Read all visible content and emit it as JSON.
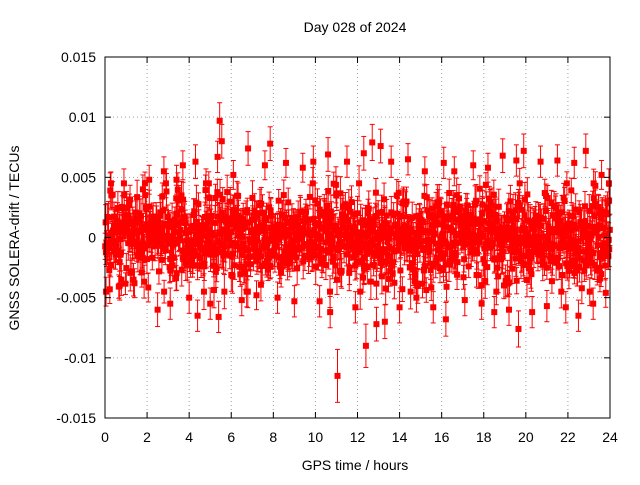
{
  "chart_data": {
    "type": "scatter",
    "title": "Day 028 of 2024",
    "xlabel": "GPS time / hours",
    "ylabel": "GNSS SOLERA-drift / TECUs",
    "xlim": [
      0,
      24
    ],
    "ylim": [
      -0.015,
      0.015
    ],
    "x_ticks": [
      0,
      2,
      4,
      6,
      8,
      10,
      12,
      14,
      16,
      18,
      20,
      22,
      24
    ],
    "y_ticks": [
      -0.015,
      -0.01,
      -0.005,
      0,
      0.005,
      0.01,
      0.015
    ],
    "x_tick_labels": [
      "0",
      "2",
      "4",
      "6",
      "8",
      "10",
      "12",
      "14",
      "16",
      "18",
      "20",
      "22",
      "24"
    ],
    "y_tick_labels": [
      "-0.015",
      "-0.01",
      "-0.005",
      "0",
      "0.005",
      "0.01",
      "0.015"
    ],
    "grid": true,
    "series": [
      {
        "color": "#ff0000",
        "marker": "square",
        "error_bars": true,
        "points": [
          {
            "x": 0.05,
            "y": -0.0045,
            "err": 0.0012
          },
          {
            "x": 0.3,
            "y": 0.0035,
            "err": 0.0012
          },
          {
            "x": 0.7,
            "y": -0.004,
            "err": 0.0012
          },
          {
            "x": 0.9,
            "y": 0.0045,
            "err": 0.0012
          },
          {
            "x": 1.4,
            "y": -0.0038,
            "err": 0.0012
          },
          {
            "x": 1.8,
            "y": 0.004,
            "err": 0.0012
          },
          {
            "x": 2.1,
            "y": 0.0048,
            "err": 0.0012
          },
          {
            "x": 2.5,
            "y": -0.006,
            "err": 0.0014
          },
          {
            "x": 2.8,
            "y": 0.0055,
            "err": 0.0012
          },
          {
            "x": 3.1,
            "y": -0.0055,
            "err": 0.0013
          },
          {
            "x": 3.4,
            "y": 0.0048,
            "err": 0.0012
          },
          {
            "x": 3.7,
            "y": 0.006,
            "err": 0.0012
          },
          {
            "x": 4.0,
            "y": -0.005,
            "err": 0.0013
          },
          {
            "x": 4.3,
            "y": 0.0063,
            "err": 0.0014
          },
          {
            "x": 4.4,
            "y": -0.0065,
            "err": 0.0013
          },
          {
            "x": 4.8,
            "y": 0.0045,
            "err": 0.0012
          },
          {
            "x": 5.0,
            "y": -0.0055,
            "err": 0.0013
          },
          {
            "x": 5.35,
            "y": 0.0067,
            "err": 0.0013
          },
          {
            "x": 5.45,
            "y": 0.0097,
            "err": 0.0015
          },
          {
            "x": 5.55,
            "y": 0.008,
            "err": 0.0014
          },
          {
            "x": 5.4,
            "y": -0.0066,
            "err": 0.0013
          },
          {
            "x": 6.1,
            "y": 0.0052,
            "err": 0.0012
          },
          {
            "x": 6.5,
            "y": -0.0052,
            "err": 0.0013
          },
          {
            "x": 6.8,
            "y": 0.0074,
            "err": 0.0014
          },
          {
            "x": 7.2,
            "y": -0.0048,
            "err": 0.0012
          },
          {
            "x": 7.6,
            "y": 0.006,
            "err": 0.0012
          },
          {
            "x": 7.85,
            "y": 0.0078,
            "err": 0.0014
          },
          {
            "x": 8.2,
            "y": -0.005,
            "err": 0.0013
          },
          {
            "x": 8.6,
            "y": 0.0062,
            "err": 0.0012
          },
          {
            "x": 9.0,
            "y": -0.0053,
            "err": 0.0013
          },
          {
            "x": 9.4,
            "y": 0.0058,
            "err": 0.0012
          },
          {
            "x": 9.9,
            "y": 0.0063,
            "err": 0.0013
          },
          {
            "x": 10.2,
            "y": -0.0053,
            "err": 0.0013
          },
          {
            "x": 10.6,
            "y": 0.0069,
            "err": 0.0014
          },
          {
            "x": 10.7,
            "y": -0.0062,
            "err": 0.0013
          },
          {
            "x": 11.05,
            "y": -0.0115,
            "err": 0.0022
          },
          {
            "x": 11.5,
            "y": 0.0063,
            "err": 0.0013
          },
          {
            "x": 11.9,
            "y": -0.0058,
            "err": 0.0013
          },
          {
            "x": 12.3,
            "y": 0.007,
            "err": 0.0014
          },
          {
            "x": 12.4,
            "y": -0.009,
            "err": 0.0018
          },
          {
            "x": 12.7,
            "y": 0.0079,
            "err": 0.0015
          },
          {
            "x": 12.9,
            "y": -0.0072,
            "err": 0.0014
          },
          {
            "x": 13.1,
            "y": 0.0076,
            "err": 0.0014
          },
          {
            "x": 13.3,
            "y": -0.007,
            "err": 0.0014
          },
          {
            "x": 13.6,
            "y": 0.0063,
            "err": 0.0013
          },
          {
            "x": 14.0,
            "y": -0.0058,
            "err": 0.0013
          },
          {
            "x": 14.4,
            "y": 0.0065,
            "err": 0.0013
          },
          {
            "x": 14.8,
            "y": -0.005,
            "err": 0.0012
          },
          {
            "x": 15.2,
            "y": 0.0055,
            "err": 0.0012
          },
          {
            "x": 15.6,
            "y": -0.0058,
            "err": 0.0013
          },
          {
            "x": 16.1,
            "y": 0.0062,
            "err": 0.0013
          },
          {
            "x": 16.2,
            "y": -0.0068,
            "err": 0.0014
          },
          {
            "x": 16.6,
            "y": 0.0055,
            "err": 0.0012
          },
          {
            "x": 17.1,
            "y": -0.0052,
            "err": 0.0013
          },
          {
            "x": 17.5,
            "y": 0.006,
            "err": 0.0012
          },
          {
            "x": 17.9,
            "y": -0.0055,
            "err": 0.0013
          },
          {
            "x": 18.2,
            "y": 0.0058,
            "err": 0.0012
          },
          {
            "x": 18.5,
            "y": -0.0062,
            "err": 0.0013
          },
          {
            "x": 18.9,
            "y": 0.0068,
            "err": 0.0014
          },
          {
            "x": 19.2,
            "y": -0.006,
            "err": 0.0013
          },
          {
            "x": 19.55,
            "y": 0.0064,
            "err": 0.0013
          },
          {
            "x": 19.65,
            "y": -0.0076,
            "err": 0.0015
          },
          {
            "x": 19.9,
            "y": 0.0072,
            "err": 0.0014
          },
          {
            "x": 20.3,
            "y": -0.0062,
            "err": 0.0013
          },
          {
            "x": 20.7,
            "y": 0.0063,
            "err": 0.0013
          },
          {
            "x": 21.0,
            "y": -0.0057,
            "err": 0.0013
          },
          {
            "x": 21.5,
            "y": 0.0064,
            "err": 0.0013
          },
          {
            "x": 21.9,
            "y": -0.0058,
            "err": 0.0013
          },
          {
            "x": 22.3,
            "y": 0.0062,
            "err": 0.0013
          },
          {
            "x": 22.5,
            "y": -0.0065,
            "err": 0.0013
          },
          {
            "x": 22.85,
            "y": 0.0072,
            "err": 0.0014
          },
          {
            "x": 23.2,
            "y": -0.0055,
            "err": 0.0013
          },
          {
            "x": 23.6,
            "y": 0.0052,
            "err": 0.0012
          },
          {
            "x": 23.8,
            "y": -0.0046,
            "err": 0.0012
          },
          {
            "x": 23.95,
            "y": 0.0045,
            "err": 0.0012
          }
        ]
      }
    ]
  }
}
